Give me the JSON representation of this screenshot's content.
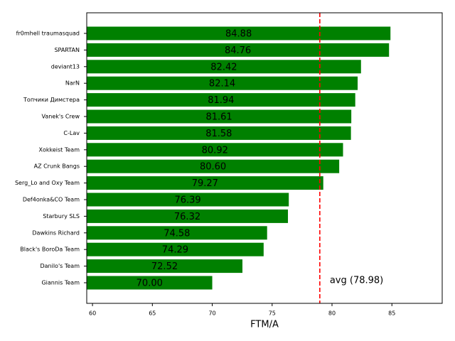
{
  "chart_data": {
    "type": "barh",
    "categories": [
      "fr0mhell traumasquad",
      "SPARTAN",
      "deviant13",
      "NarN",
      "Топчики Димстера",
      "Vanek's Crew",
      "C-Lav",
      "Xokkeist Team",
      "AZ Crunk Bangs",
      "Serg_Lo and Oxy Team",
      "Def4onka&CO Team",
      "Starbury SLS",
      "Dawkins Richard",
      "Black's BoroDa Team",
      "Danilo's Team",
      "Giannis Team"
    ],
    "values": [
      84.88,
      84.76,
      82.42,
      82.14,
      81.94,
      81.61,
      81.58,
      80.92,
      80.6,
      79.27,
      76.39,
      76.32,
      74.58,
      74.29,
      72.52,
      70.0
    ],
    "value_labels": [
      "84.88",
      "84.76",
      "82.42",
      "82.14",
      "81.94",
      "81.61",
      "81.58",
      "80.92",
      "80.60",
      "79.27",
      "76.39",
      "76.32",
      "74.58",
      "74.29",
      "72.52",
      "70.00"
    ],
    "color": "#008000",
    "x_label": "FTM/A",
    "xlim": [
      59.52,
      89.2
    ],
    "xticks": [
      60,
      65,
      70,
      75,
      80,
      85
    ],
    "avg": 78.98,
    "avg_label": "avg (78.98)",
    "avg_color": "#ff0000"
  }
}
